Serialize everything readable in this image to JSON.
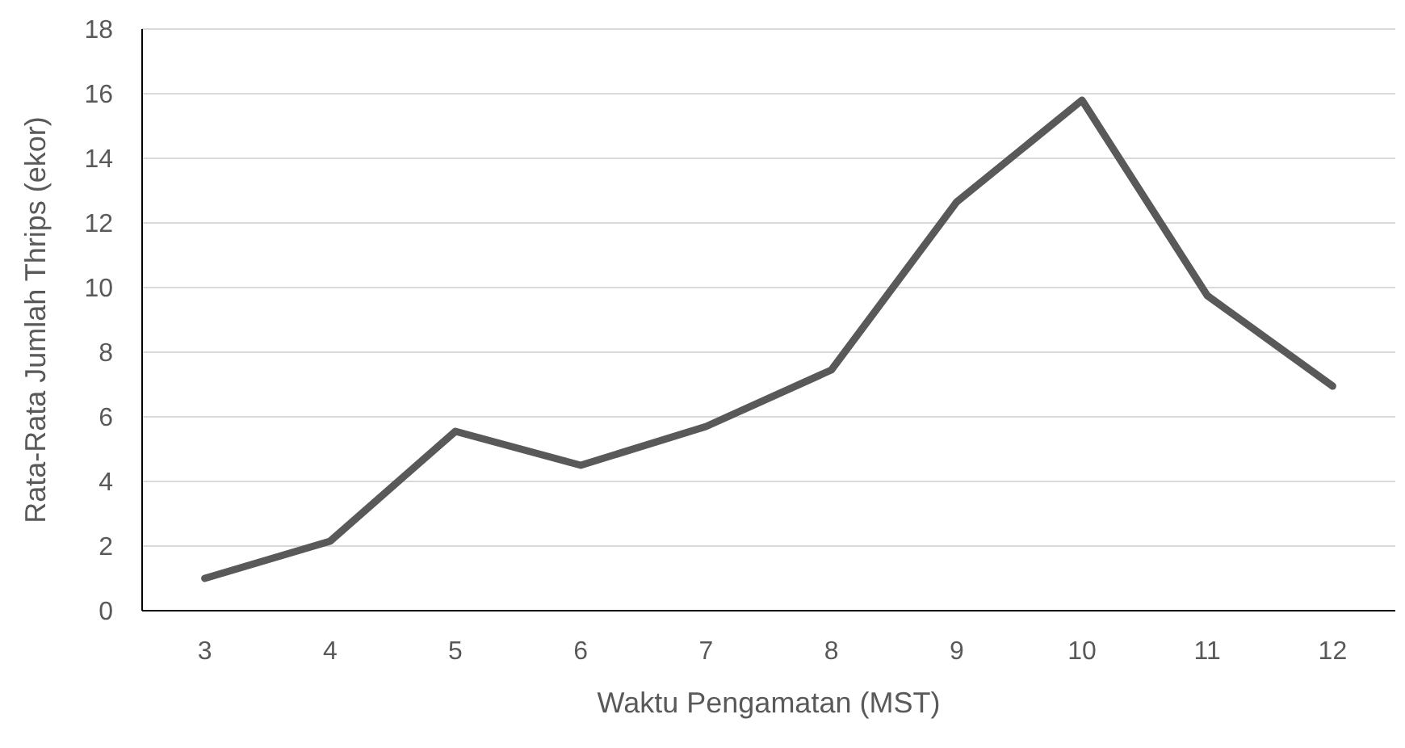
{
  "chart_data": {
    "type": "line",
    "xlabel": "Waktu Pengamatan (MST)",
    "ylabel": "Rata-Rata Jumlah Thrips (ekor)",
    "categories": [
      "3",
      "4",
      "5",
      "6",
      "7",
      "8",
      "9",
      "10",
      "11",
      "12"
    ],
    "series": [
      {
        "color": "#595959",
        "values": [
          1.0,
          2.15,
          5.55,
          4.5,
          5.7,
          7.45,
          12.65,
          15.8,
          9.75,
          6.95
        ]
      }
    ],
    "ylim": [
      0,
      18
    ],
    "yticks": [
      0,
      2,
      4,
      6,
      8,
      10,
      12,
      14,
      16,
      18
    ],
    "grid": "y",
    "marker": "none",
    "line_style": "solid"
  }
}
